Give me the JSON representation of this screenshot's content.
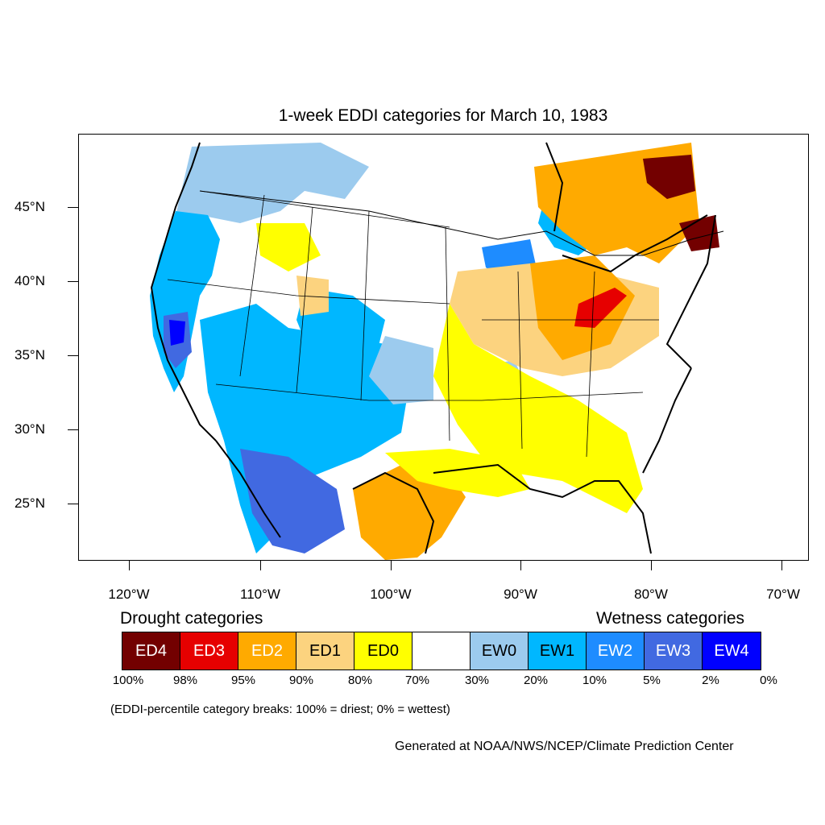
{
  "title": "1-week EDDI categories for March 10, 1983",
  "lat_labels": [
    "45°N",
    "40°N",
    "35°N",
    "30°N",
    "25°N"
  ],
  "lon_labels": [
    "120°W",
    "110°W",
    "100°W",
    "90°W",
    "80°W",
    "70°W"
  ],
  "legend": {
    "drought_heading": "Drought categories",
    "wetness_heading": "Wetness categories",
    "categories": [
      {
        "label": "ED4",
        "color": "#730000",
        "text_color": "#ffffff"
      },
      {
        "label": "ED3",
        "color": "#e60000",
        "text_color": "#ffffff"
      },
      {
        "label": "ED2",
        "color": "#ffaa00",
        "text_color": "#ffffff"
      },
      {
        "label": "ED1",
        "color": "#fcd37f",
        "text_color": "#000000"
      },
      {
        "label": "ED0",
        "color": "#ffff00",
        "text_color": "#000000"
      },
      {
        "label": "",
        "color": "#ffffff",
        "text_color": "#000000"
      },
      {
        "label": "EW0",
        "color": "#9ccbee",
        "text_color": "#000000"
      },
      {
        "label": "EW1",
        "color": "#00b7ff",
        "text_color": "#000000"
      },
      {
        "label": "EW2",
        "color": "#1e8cff",
        "text_color": "#ffffff"
      },
      {
        "label": "EW3",
        "color": "#4169e1",
        "text_color": "#ffffff"
      },
      {
        "label": "EW4",
        "color": "#0000ff",
        "text_color": "#ffffff"
      }
    ],
    "percentiles": [
      "100%",
      "98%",
      "95%",
      "90%",
      "80%",
      "70%",
      "30%",
      "20%",
      "10%",
      "5%",
      "2%",
      "0%"
    ]
  },
  "note": "(EDDI-percentile category breaks: 100% = driest; 0% = wettest)",
  "credit": "Generated at NOAA/NWS/NCEP/Climate Prediction Center"
}
